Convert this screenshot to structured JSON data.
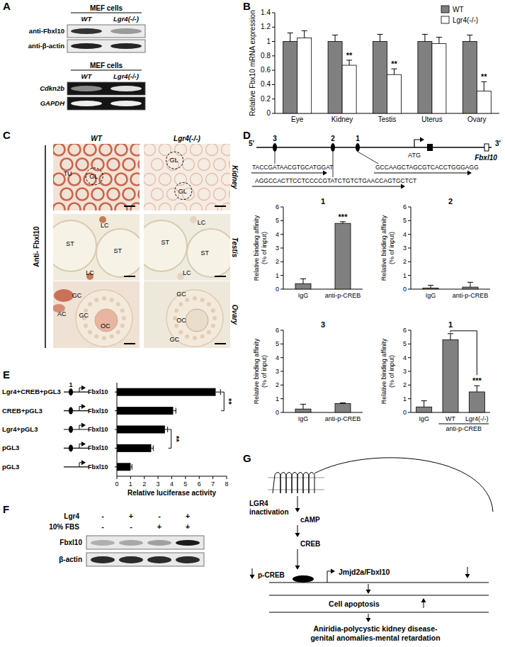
{
  "chart_data": [
    {
      "type": "bar",
      "y_label": "Relative Fbx10 mRNA expression",
      "categories": [
        "Eye",
        "Kidney",
        "Testis",
        "Uterus",
        "Ovary"
      ],
      "series": [
        {
          "name": "WT",
          "color": "#808080",
          "values": [
            1,
            1,
            1,
            1,
            1
          ],
          "errors": [
            0.12,
            0.09,
            0.1,
            0.1,
            0.09
          ]
        },
        {
          "name": "Lgr4(-/-)",
          "color": "#ffffff",
          "values": [
            1.05,
            0.67,
            0.54,
            0.97,
            0.31
          ],
          "errors": [
            0.1,
            0.07,
            0.08,
            0.09,
            0.13
          ],
          "significance": [
            null,
            "**",
            "**",
            null,
            "**"
          ]
        }
      ],
      "ylim": [
        0,
        1.4
      ],
      "yticks": [
        0,
        0.2,
        0.4,
        0.6,
        0.8,
        1,
        1.2,
        1.4
      ],
      "legend": "upper right"
    },
    {
      "type": "bar",
      "title": "1",
      "y_label": [
        "Relative binding affinity",
        "(% of input)"
      ],
      "categories": [
        "IgG",
        "anti-p-CREB"
      ],
      "values": [
        0.4,
        4.8
      ],
      "errors": [
        0.35,
        0.12
      ],
      "significance": [
        null,
        "***"
      ],
      "color": "#808080",
      "ylim": [
        0,
        6
      ],
      "yticks": [
        0,
        1,
        2,
        3,
        4,
        5,
        6
      ]
    },
    {
      "type": "bar",
      "title": "2",
      "y_label": [
        "Relative binding affinity",
        "(% of input)"
      ],
      "categories": [
        "IgG",
        "anti-p-CREB"
      ],
      "values": [
        0.08,
        0.15
      ],
      "errors": [
        0.2,
        0.35
      ],
      "color": "#808080",
      "ylim": [
        0,
        6
      ],
      "yticks": [
        0,
        1,
        2,
        3,
        4,
        5,
        6
      ]
    },
    {
      "type": "bar",
      "title": "3",
      "y_label": [
        "Relative binding affinity",
        "(% of input)"
      ],
      "categories": [
        "IgG",
        "anti-p-CREB"
      ],
      "values": [
        0.25,
        0.65
      ],
      "errors": [
        0.35,
        0.05
      ],
      "color": "#808080",
      "ylim": [
        0,
        6
      ],
      "yticks": [
        0,
        1,
        2,
        3,
        4,
        5,
        6
      ]
    },
    {
      "type": "bar",
      "title": "1",
      "y_label": [
        "Relative binding affinity",
        "(% of input)"
      ],
      "categories": [
        "IgG",
        "WT",
        "Lgr4(-/-)"
      ],
      "group_label": "anti-p-CREB",
      "values": [
        0.4,
        5.3,
        1.5
      ],
      "errors": [
        0.45,
        0.45,
        0.45
      ],
      "significance": [
        null,
        null,
        "***"
      ],
      "color": "#808080",
      "ylim": [
        0,
        6
      ],
      "yticks": [
        0,
        1,
        2,
        3,
        4,
        5,
        6
      ]
    },
    {
      "type": "bar",
      "orientation": "horizontal",
      "x_label": "Relative luciferase activity",
      "categories": [
        "Lgr4+CREB+pGL3",
        "CREB+pGL3",
        "Lgr4+pGL3",
        "pGL3",
        "pGL3"
      ],
      "values": [
        7.2,
        4.1,
        3.5,
        2.5,
        1.0
      ],
      "errors": [
        0.35,
        0.2,
        0.2,
        0.15,
        0.1
      ],
      "significance": [
        "**",
        null,
        "**",
        null,
        null
      ],
      "color": "#000000",
      "xlim": [
        0,
        8
      ],
      "xticks": [
        0,
        1,
        2,
        3,
        4,
        5,
        6,
        7,
        8
      ]
    }
  ],
  "figure": {
    "panel_labels": [
      "A",
      "B",
      "C",
      "D",
      "E",
      "F",
      "G"
    ],
    "panel_a": {
      "blot": {
        "header": "MEF cells",
        "lanes": [
          "WT",
          "Lgr4(-/-)"
        ],
        "rows": [
          "anti-Fbxl10",
          "anti-β-actin"
        ]
      },
      "gel": {
        "header": "MEF cells",
        "lanes": [
          "WT",
          "Lgr4(-/-)"
        ],
        "rows": [
          "Cdkn2b",
          "GAPDH"
        ]
      }
    },
    "panel_c": {
      "columns": [
        "WT",
        "Lgr4(-/-)"
      ],
      "rows": [
        "Kidney",
        "Testis",
        "Ovary"
      ],
      "stain": "Anti- Fbxl10",
      "images": [
        [
          [
            "TU",
            "GL"
          ],
          [
            "GL",
            "GL"
          ]
        ],
        [
          [
            "LC",
            "ST",
            "ST",
            "LC"
          ],
          [
            "LC",
            "ST",
            "ST",
            "LC"
          ]
        ],
        [
          [
            "GC",
            "AC",
            "GC",
            "OC"
          ],
          [
            "GC",
            "OC",
            "GC"
          ]
        ]
      ]
    },
    "panel_d": {
      "five_prime": "5'",
      "three_prime": "3'",
      "sites": [
        "3",
        "2",
        "1"
      ],
      "start_codon": "ATG",
      "gene": "Fbxl10",
      "primers": [
        "TACCGATAACGTGCATGGAT",
        "GCCAAGCTAGCGTCACCTGGGAGG",
        "AGGCCACTTCCTCCCCGTATCTGTCTGAACCAGTGCTCT"
      ]
    },
    "panel_e": {
      "element": "1",
      "gene": "Fbxl10"
    },
    "panel_f": {
      "rows": [
        {
          "label": "Lgr4",
          "signs": [
            "-",
            "+",
            "-",
            "+"
          ]
        },
        {
          "label": "10% FBS",
          "signs": [
            "-",
            "-",
            "+",
            "+"
          ]
        }
      ],
      "blots": [
        "Fbxl10",
        "β-actin"
      ]
    },
    "panel_g": {
      "receptor": [
        "LGR4",
        "inactivation"
      ],
      "messenger": "cAMP",
      "factor": "CREB",
      "phospho": "p-CREB",
      "target": "Jmjd2a/Fbxl10",
      "effect": "Cell apoptosis",
      "disease": [
        "Aniridia-polycystic kidney disease-",
        "genital anomalies-mental retardation"
      ]
    }
  }
}
